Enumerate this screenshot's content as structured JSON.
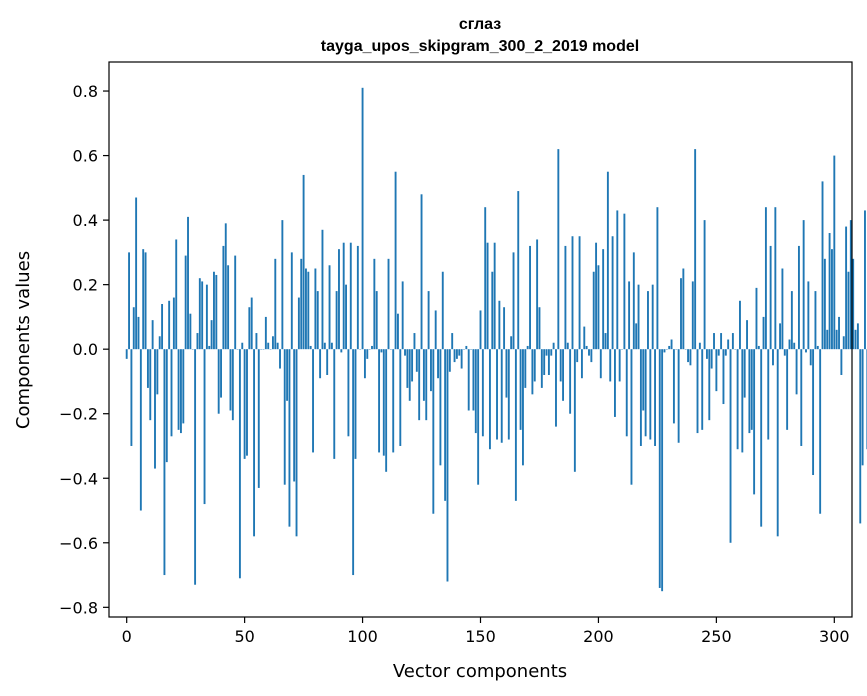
{
  "chart_data": {
    "type": "bar",
    "title": "сглаз",
    "subtitle": "tayga_upos_skipgram_300_2_2019 model",
    "xlabel": "Vector components",
    "ylabel": "Components values",
    "xlim": [
      -7.5,
      307.5
    ],
    "ylim": [
      -0.83,
      0.89
    ],
    "x_ticks": [
      0,
      50,
      100,
      150,
      200,
      250,
      300
    ],
    "y_ticks": [
      -0.8,
      -0.6,
      -0.4,
      -0.2,
      0.0,
      0.2,
      0.4,
      0.6,
      0.8
    ],
    "x_tick_labels": [
      "0",
      "50",
      "100",
      "150",
      "200",
      "250",
      "300"
    ],
    "y_tick_labels": [
      "−0.8",
      "−0.6",
      "−0.4",
      "−0.2",
      "0.0",
      "0.2",
      "0.4",
      "0.6",
      "0.8"
    ],
    "bar_color": "#1f77b4",
    "values": [
      -0.03,
      0.3,
      -0.3,
      0.13,
      0.47,
      0.1,
      -0.5,
      0.31,
      0.3,
      -0.12,
      -0.22,
      0.09,
      -0.37,
      -0.14,
      0.04,
      0.14,
      -0.7,
      -0.35,
      0.15,
      -0.27,
      0.16,
      0.34,
      -0.25,
      -0.26,
      -0.23,
      0.29,
      0.41,
      0.11,
      0.0,
      -0.73,
      0.05,
      0.22,
      0.21,
      -0.48,
      0.2,
      0.01,
      0.09,
      0.24,
      0.23,
      -0.2,
      -0.15,
      0.32,
      0.39,
      0.26,
      -0.19,
      -0.22,
      0.29,
      0.0,
      -0.71,
      0.02,
      -0.34,
      -0.33,
      0.13,
      0.16,
      -0.58,
      0.05,
      -0.43,
      0.0,
      0.0,
      0.1,
      0.02,
      0.0,
      0.04,
      0.28,
      0.02,
      -0.06,
      0.4,
      -0.42,
      -0.16,
      -0.55,
      0.3,
      -0.41,
      -0.58,
      0.16,
      0.28,
      0.54,
      0.25,
      0.24,
      0.01,
      -0.32,
      0.25,
      0.18,
      -0.09,
      0.37,
      0.02,
      -0.08,
      0.26,
      0.02,
      -0.34,
      0.18,
      0.31,
      -0.01,
      0.33,
      0.2,
      -0.27,
      0.33,
      -0.7,
      -0.34,
      0.32,
      0.0,
      0.81,
      -0.09,
      -0.03,
      0.0,
      0.01,
      0.28,
      0.18,
      -0.32,
      -0.01,
      -0.33,
      -0.38,
      0.28,
      0.0,
      -0.32,
      0.55,
      0.11,
      -0.3,
      0.21,
      -0.02,
      -0.12,
      -0.16,
      -0.1,
      0.05,
      -0.07,
      -0.22,
      0.48,
      -0.16,
      -0.22,
      0.18,
      -0.13,
      -0.51,
      0.12,
      -0.09,
      -0.36,
      0.24,
      -0.47,
      -0.72,
      -0.07,
      0.05,
      -0.04,
      -0.03,
      -0.02,
      -0.06,
      0.0,
      0.01,
      -0.19,
      0.0,
      -0.19,
      -0.26,
      -0.42,
      0.12,
      -0.27,
      0.44,
      0.33,
      -0.31,
      0.24,
      0.33,
      -0.28,
      0.15,
      -0.29,
      0.13,
      -0.15,
      -0.28,
      0.04,
      0.3,
      -0.47,
      0.49,
      -0.25,
      -0.36,
      -0.12,
      0.01,
      0.32,
      -0.14,
      -0.1,
      0.34,
      0.13,
      -0.12,
      -0.08,
      -0.02,
      -0.08,
      -0.02,
      0.02,
      -0.24,
      0.62,
      -0.1,
      -0.16,
      0.32,
      0.02,
      -0.2,
      0.35,
      -0.38,
      -0.04,
      0.35,
      -0.09,
      0.07,
      0.01,
      -0.02,
      -0.04,
      0.24,
      0.33,
      0.26,
      -0.09,
      0.31,
      0.05,
      0.55,
      -0.1,
      0.35,
      -0.21,
      0.43,
      -0.1,
      0.0,
      0.42,
      -0.27,
      0.21,
      -0.42,
      0.3,
      0.08,
      0.2,
      -0.3,
      -0.19,
      -0.27,
      0.18,
      -0.28,
      0.2,
      -0.3,
      0.44,
      -0.74,
      -0.75,
      -0.01,
      0.0,
      0.01,
      0.03,
      -0.23,
      0.0,
      -0.29,
      0.22,
      0.25,
      0.0,
      -0.04,
      -0.05,
      0.21,
      0.62,
      -0.26,
      0.02,
      -0.25,
      0.4,
      -0.03,
      -0.22,
      -0.06,
      0.05,
      -0.13,
      -0.02,
      0.05,
      -0.17,
      -0.02,
      0.03,
      -0.6,
      0.05,
      0.0,
      -0.31,
      0.15,
      -0.32,
      -0.15,
      0.09,
      -0.26,
      -0.25,
      -0.45,
      0.19,
      0.01,
      -0.55,
      0.1,
      0.44,
      -0.28,
      0.32,
      -0.05,
      0.44,
      -0.58,
      0.08,
      0.25,
      -0.02,
      -0.25,
      0.03,
      0.18,
      0.02,
      -0.14,
      0.32,
      -0.3,
      0.4,
      -0.01,
      0.21,
      -0.05,
      -0.39,
      0.18,
      0.01,
      -0.51,
      0.52,
      0.28,
      0.06,
      0.36,
      0.31,
      0.6,
      0.06,
      0.1,
      -0.08,
      0.04,
      0.38,
      0.24,
      0.4,
      0.28,
      0.06,
      0.08,
      -0.54,
      -0.36,
      0.43,
      -0.31
    ]
  }
}
